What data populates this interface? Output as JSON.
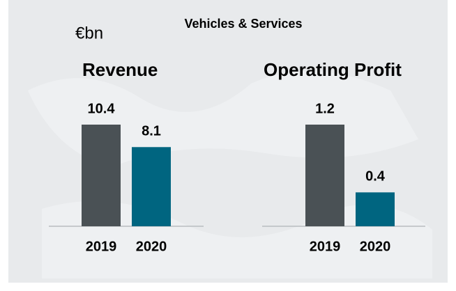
{
  "header": {
    "title": "Vehicles & Services",
    "unit": "€bn"
  },
  "chart_data": [
    {
      "type": "bar",
      "title": "Revenue",
      "categories": [
        "2019",
        "2020"
      ],
      "values": [
        10.4,
        8.1
      ],
      "colors": [
        "#4a5155",
        "#006580"
      ]
    },
    {
      "type": "bar",
      "title": "Operating Profit",
      "categories": [
        "2019",
        "2020"
      ],
      "values": [
        1.2,
        0.4
      ],
      "colors": [
        "#4a5155",
        "#006580"
      ]
    }
  ]
}
